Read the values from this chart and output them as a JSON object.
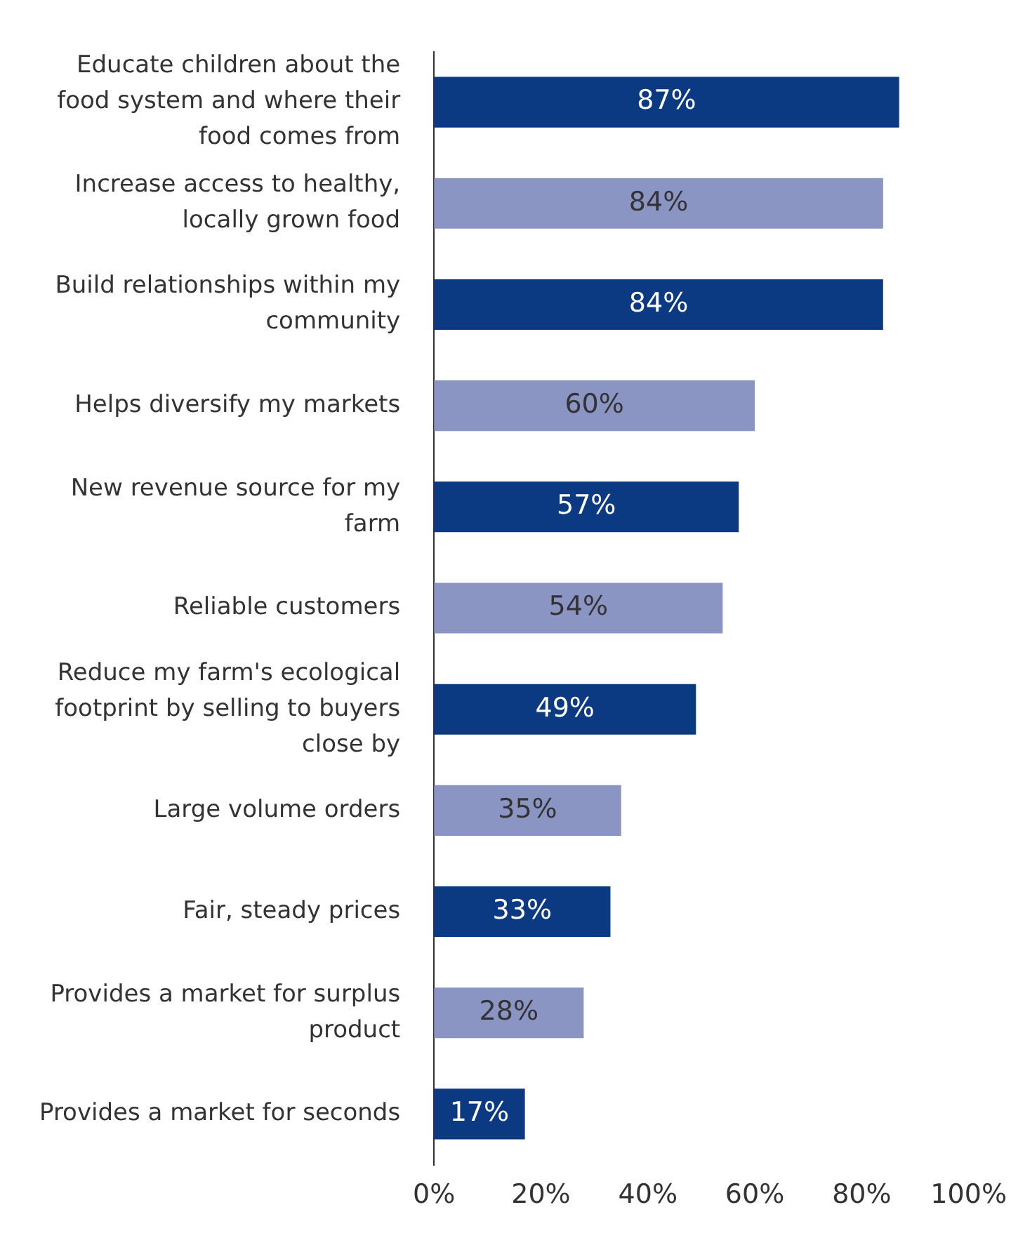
{
  "chart_data": {
    "type": "bar",
    "orientation": "horizontal",
    "categories": [
      "Educate children about the food system and where their food comes from",
      "Increase access to healthy, locally grown food",
      "Build relationships within my community",
      "Helps diversify my markets",
      "New revenue source for my farm",
      "Reliable customers",
      "Reduce my farm's ecological footprint by selling to buyers close by",
      "Large volume orders",
      "Fair, steady prices",
      "Provides a market for surplus product",
      "Provides a market for seconds"
    ],
    "values": [
      87,
      84,
      84,
      60,
      57,
      54,
      49,
      35,
      33,
      28,
      17
    ],
    "colors": [
      "#0b3a82",
      "#8b95c4",
      "#0b3a82",
      "#8b95c4",
      "#0b3a82",
      "#8b95c4",
      "#0b3a82",
      "#8b95c4",
      "#0b3a82",
      "#8b95c4",
      "#0b3a82"
    ],
    "value_labels": [
      "87%",
      "84%",
      "84%",
      "60%",
      "57%",
      "54%",
      "49%",
      "35%",
      "33%",
      "28%",
      "17%"
    ],
    "xlim": [
      0,
      100
    ],
    "xticks": [
      {
        "value": 0,
        "label": "0%"
      },
      {
        "value": 20,
        "label": "20%"
      },
      {
        "value": 40,
        "label": "40%"
      },
      {
        "value": 60,
        "label": "60%"
      },
      {
        "value": 80,
        "label": "80%"
      },
      {
        "value": 100,
        "label": "100%"
      }
    ],
    "grid": false,
    "legend": false
  }
}
